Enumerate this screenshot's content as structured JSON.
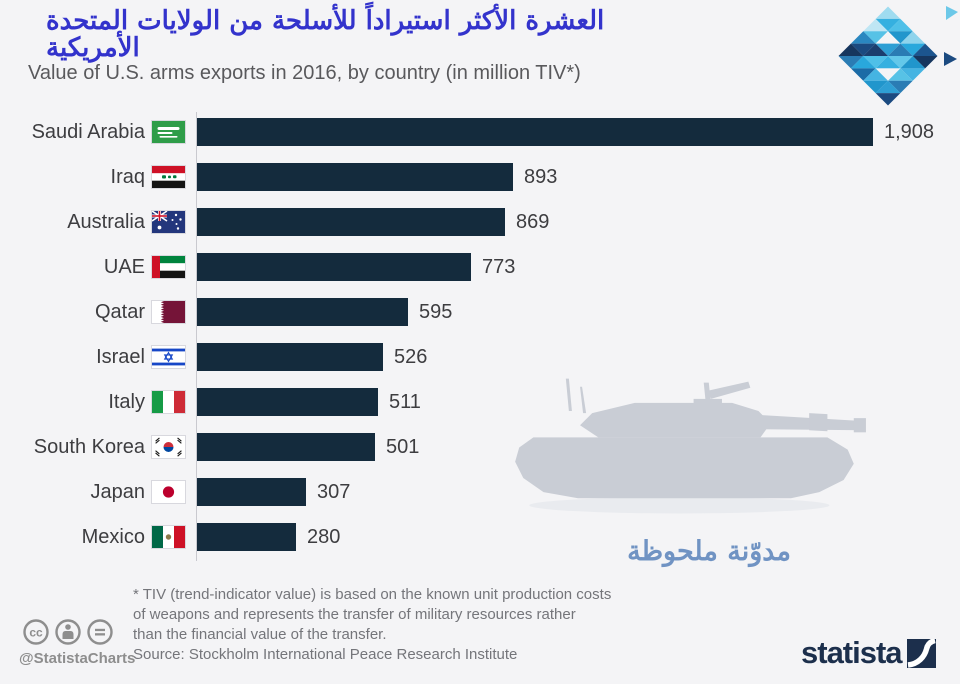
{
  "header": {
    "title_line1_ar": "العشرة الأكثر استيراداً للأسلحة من الولايات المتحدة",
    "title_line2_ar": "الأمريكية",
    "subtitle": "Value of U.S. arms exports in 2016, by country (in million TIV*)",
    "title_color": "#3333cc"
  },
  "chart_data": {
    "type": "bar",
    "orientation": "horizontal",
    "title_ar": "العشرة الأكثر استيراداً للأسلحة من الولايات المتحدة الأمريكية",
    "subtitle_en": "Value of U.S. arms exports in 2016, by country (in million TIV*)",
    "unit": "million TIV",
    "xlim": [
      0,
      1908
    ],
    "grid": false,
    "categories": [
      "Saudi Arabia",
      "Iraq",
      "Australia",
      "UAE",
      "Qatar",
      "Israel",
      "Italy",
      "South Korea",
      "Japan",
      "Mexico"
    ],
    "values": [
      1908,
      893,
      869,
      773,
      595,
      526,
      511,
      501,
      307,
      280
    ],
    "value_labels": [
      "1,908",
      "893",
      "869",
      "773",
      "595",
      "526",
      "511",
      "501",
      "307",
      "280"
    ],
    "flag_icons": [
      "flag-saudi-arabia-icon",
      "flag-iraq-icon",
      "flag-australia-icon",
      "flag-uae-icon",
      "flag-qatar-icon",
      "flag-israel-icon",
      "flag-italy-icon",
      "flag-south-korea-icon",
      "flag-japan-icon",
      "flag-mexico-icon"
    ],
    "bar_color": "#142b3d"
  },
  "watermark": {
    "tank_icon": "tank-silhouette-icon",
    "caption_ar": "مدوّنة ملحوظة",
    "caption_color": "#7093c3"
  },
  "footer": {
    "footnote_lines": [
      "* TIV (trend-indicator value) is based on the known unit production costs",
      "of weapons and represents the transfer of military resources rather",
      "than the financial value of the transfer.",
      ""
    ],
    "source": "Source: Stockholm International Peace Research Institute",
    "cc_handle": "@StatistaCharts",
    "brand_wordmark": "statista"
  }
}
